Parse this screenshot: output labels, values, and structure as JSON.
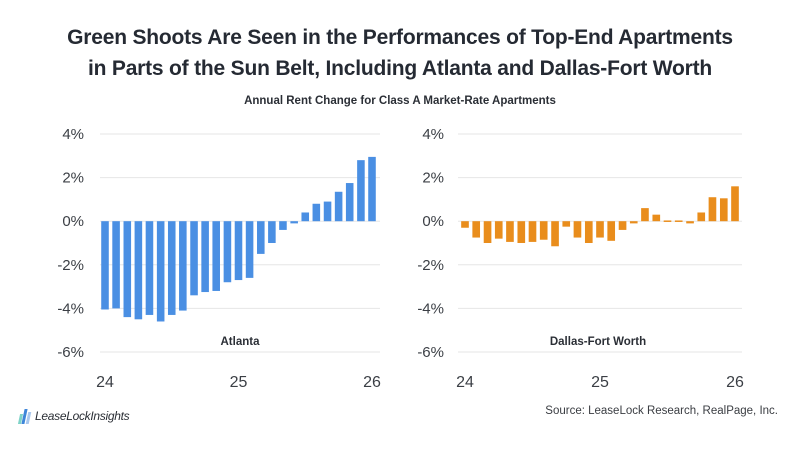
{
  "header": {
    "title_line1": "Green Shoots Are Seen in the Performances of Top-End Apartments",
    "title_line2": "in Parts of the Sun Belt, Including Atlanta and Dallas-Fort Worth",
    "subtitle": "Annual Rent Change for Class A Market-Rate Apartments"
  },
  "footer": {
    "source": "Source: LeaseLock Research, RealPage, Inc.",
    "logo_text": "LeaseLockInsights"
  },
  "colors": {
    "atlanta": "#4a8fe3",
    "dallas": "#e98d1c",
    "grid": "#e6e6e6",
    "axis_text": "#3b3f45"
  },
  "chart_data": [
    {
      "type": "bar",
      "title": "Atlanta",
      "xlabel": "",
      "ylabel": "",
      "x_ticks": [
        "24",
        "25",
        "26"
      ],
      "x_range": [
        24,
        26
      ],
      "y_ticks": [
        "4%",
        "2%",
        "0%",
        "-2%",
        "-4%",
        "-6%"
      ],
      "ylim": [
        -6,
        4
      ],
      "grid": true,
      "unit": "%",
      "x": [
        24.0,
        24.083,
        24.167,
        24.25,
        24.333,
        24.417,
        24.5,
        24.583,
        24.667,
        24.75,
        24.833,
        24.917,
        25.0,
        25.083,
        25.167,
        25.25,
        25.333,
        25.417,
        25.5,
        25.583,
        25.667,
        25.75,
        25.833,
        25.917,
        26.0
      ],
      "values": [
        -4.05,
        -4.0,
        -4.4,
        -4.5,
        -4.3,
        -4.6,
        -4.3,
        -4.1,
        -3.4,
        -3.25,
        -3.2,
        -2.8,
        -2.7,
        -2.6,
        -1.5,
        -1.0,
        -0.4,
        -0.1,
        0.4,
        0.8,
        0.9,
        1.35,
        1.75,
        2.8,
        2.95
      ]
    },
    {
      "type": "bar",
      "title": "Dallas-Fort Worth",
      "xlabel": "",
      "ylabel": "",
      "x_ticks": [
        "24",
        "25",
        "26"
      ],
      "x_range": [
        24,
        26
      ],
      "y_ticks": [
        "4%",
        "2%",
        "0%",
        "-2%",
        "-4%",
        "-6%"
      ],
      "ylim": [
        -6,
        4
      ],
      "grid": true,
      "unit": "%",
      "x": [
        24.0,
        24.083,
        24.167,
        24.25,
        24.333,
        24.417,
        24.5,
        24.583,
        24.667,
        24.75,
        24.833,
        24.917,
        25.0,
        25.083,
        25.167,
        25.25,
        25.333,
        25.417,
        25.5,
        25.583,
        25.667,
        25.75,
        25.833,
        25.917,
        26.0
      ],
      "values": [
        -0.3,
        -0.75,
        -1.0,
        -0.8,
        -0.95,
        -1.0,
        -0.95,
        -0.85,
        -1.15,
        -0.25,
        -0.75,
        -1.0,
        -0.75,
        -0.9,
        -0.4,
        -0.1,
        0.6,
        0.3,
        0.02,
        0.02,
        -0.1,
        0.4,
        1.1,
        1.05,
        1.6
      ]
    }
  ]
}
